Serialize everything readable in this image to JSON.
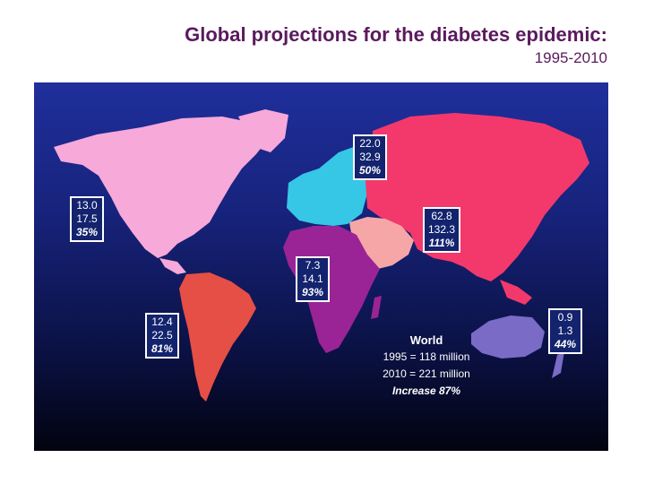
{
  "title": "Global projections for the diabetes epidemic:",
  "subtitle": "1995-2010",
  "regions": {
    "north_america": {
      "v1995": "13.0",
      "v2010": "17.5",
      "increase": "35%",
      "color": "#f7a9d9"
    },
    "europe": {
      "v1995": "22.0",
      "v2010": "32.9",
      "increase": "50%",
      "color": "#36c6e6"
    },
    "asia": {
      "v1995": "62.8",
      "v2010": "132.3",
      "increase": "111%",
      "color": "#f3396b"
    },
    "middle_east": {
      "color": "#f7a6a8"
    },
    "africa": {
      "v1995": "7.3",
      "v2010": "14.1",
      "increase": "93%",
      "color": "#9a2495"
    },
    "south_america": {
      "v1995": "12.4",
      "v2010": "22.5",
      "increase": "81%",
      "color": "#e54f46"
    },
    "oceania": {
      "v1995": "0.9",
      "v2010": "1.3",
      "increase": "44%",
      "color": "#7a6bc6"
    }
  },
  "world": {
    "label": "World",
    "line1995": "1995 = 118 million",
    "line2010": "2010 = 221 million",
    "increase": "Increase 87%"
  }
}
